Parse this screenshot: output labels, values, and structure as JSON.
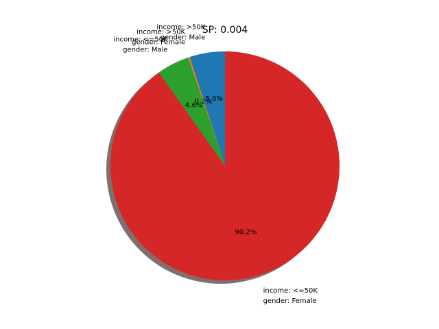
{
  "chart_data": {
    "type": "pie",
    "title": "SP: 0.004",
    "shadow": true,
    "start_angle": 90,
    "direction": "counterclockwise",
    "slices": [
      {
        "label_lines": [
          "income: >50K",
          "gender: Male"
        ],
        "value": 5.0,
        "pct_label": "5.0%",
        "color": "#1f77b4"
      },
      {
        "label_lines": [
          "income: >50K",
          "gender: Female"
        ],
        "value": 0.2,
        "pct_label": "0.2%",
        "color": "#ff7f0e"
      },
      {
        "label_lines": [
          "income: <=50K",
          "gender: Male"
        ],
        "value": 4.6,
        "pct_label": "4.6%",
        "color": "#2ca02c"
      },
      {
        "label_lines": [
          "income: <=50K",
          "gender: Female"
        ],
        "value": 90.2,
        "pct_label": "90.2%",
        "color": "#d62728"
      }
    ],
    "shadow_color": "#7f6f6f"
  }
}
